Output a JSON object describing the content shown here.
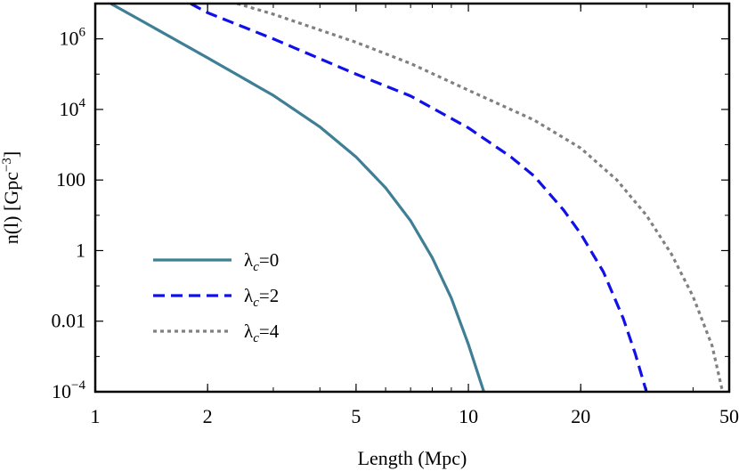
{
  "chart_data": {
    "type": "line",
    "xlabel": "Length (Mpc)",
    "ylabel": "n(l) [Gpc",
    "ylabel_unit_exp": "−3",
    "ylabel_close": "]",
    "xscale": "log",
    "yscale": "log",
    "xlim": [
      1,
      50
    ],
    "ylim": [
      0.0001,
      10000000
    ],
    "grid": false,
    "legend_position": "lower-left",
    "x_ticks": [
      {
        "value": 1,
        "label": "1"
      },
      {
        "value": 2,
        "label": "2"
      },
      {
        "value": 5,
        "label": "5"
      },
      {
        "value": 10,
        "label": "10"
      },
      {
        "value": 20,
        "label": "20"
      },
      {
        "value": 50,
        "label": "50"
      }
    ],
    "y_ticks": [
      {
        "value": 0.0001,
        "base": "10",
        "exp": "−4",
        "label": ""
      },
      {
        "value": 0.01,
        "base": "",
        "exp": "",
        "label": "0.01"
      },
      {
        "value": 1,
        "base": "",
        "exp": "",
        "label": "1"
      },
      {
        "value": 100,
        "base": "",
        "exp": "",
        "label": "100"
      },
      {
        "value": 10000,
        "base": "10",
        "exp": "4",
        "label": ""
      },
      {
        "value": 1000000,
        "base": "10",
        "exp": "6",
        "label": ""
      }
    ],
    "series": [
      {
        "name_symbol": "λ",
        "name_sub": "c",
        "name_rest": "=0",
        "color": "#3f7f95",
        "style": "solid",
        "x": [
          1.1,
          1.5,
          2.0,
          3.0,
          4.0,
          5.0,
          6.0,
          7.0,
          8.0,
          9.0,
          10.0,
          11.0
        ],
        "y": [
          10000000,
          1600000,
          290000,
          25000,
          3200,
          450,
          60,
          7,
          0.63,
          0.045,
          0.0022,
          0.0001
        ]
      },
      {
        "name_symbol": "λ",
        "name_sub": "c",
        "name_rest": "=2",
        "color": "#1010e8",
        "style": "dashed",
        "x": [
          1.8,
          2.0,
          3.0,
          5.0,
          7.0,
          10.0,
          13.0,
          15.0,
          18.0,
          20.0,
          23.0,
          26.0,
          28.0,
          30.0
        ],
        "y": [
          10000000,
          5500000,
          1000000,
          100000,
          24000,
          3000,
          450,
          130,
          14,
          3,
          0.25,
          0.012,
          0.0012,
          0.0001
        ]
      },
      {
        "name_symbol": "λ",
        "name_sub": "c",
        "name_rest": "=4",
        "color": "#808080",
        "style": "dotted",
        "x": [
          2.4,
          3.0,
          5.0,
          7.0,
          10.0,
          15.0,
          20.0,
          25.0,
          30.0,
          35.0,
          40.0,
          45.0,
          48.0
        ],
        "y": [
          10000000,
          5000000,
          800000,
          200000,
          35000,
          5000,
          800,
          100,
          10,
          0.8,
          0.05,
          0.002,
          0.0001
        ]
      }
    ]
  }
}
